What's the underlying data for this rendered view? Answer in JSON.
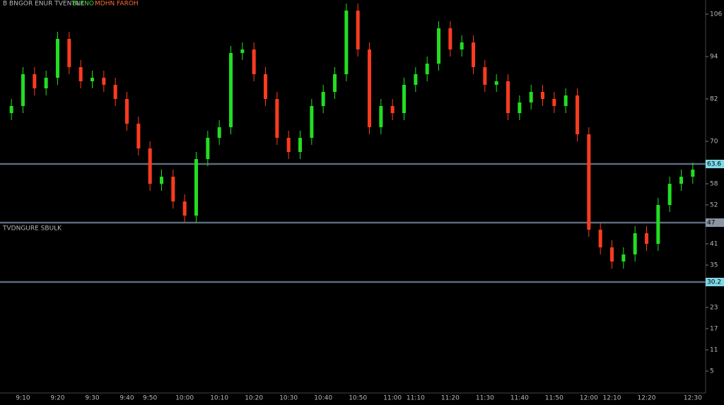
{
  "chart_data": {
    "type": "candlestick",
    "title": "B BNGOR ENUR TVENTNE",
    "subtitle": "BLKNO",
    "annotation": "MDHN FAROH",
    "panel_label": "TVDNGURE SBULK",
    "up_color": "#22dd22",
    "down_color": "#ff3b1f",
    "categories": [
      null,
      "9:10",
      null,
      null,
      "9:20",
      null,
      null,
      "9:30",
      null,
      null,
      "9:40",
      null,
      "9:50",
      null,
      null,
      "10:00",
      null,
      null,
      "10:10",
      null,
      null,
      "10:20",
      null,
      null,
      "10:30",
      null,
      null,
      "10:40",
      null,
      null,
      "10:50",
      null,
      null,
      "11:00",
      null,
      "11:10",
      null,
      null,
      "11:20",
      null,
      null,
      "11:30",
      null,
      null,
      "11:40",
      null,
      null,
      "11:50",
      null,
      null,
      "12:00",
      null,
      "12:10",
      null,
      null,
      "12:20",
      null,
      null,
      null,
      "12:30"
    ],
    "open": [
      78,
      80,
      89,
      85,
      88,
      99,
      91,
      87,
      88,
      86,
      82,
      75,
      68,
      58,
      60,
      53,
      49,
      65,
      71,
      74,
      95,
      96,
      89,
      82,
      71,
      67,
      71,
      80,
      84,
      89,
      107,
      96,
      74,
      80,
      78,
      86,
      89,
      92,
      102,
      96,
      98,
      91,
      86,
      87,
      78,
      81,
      84,
      82,
      80,
      83,
      72,
      45,
      40,
      36,
      38,
      44,
      41,
      52,
      58,
      60
    ],
    "high": [
      82,
      91,
      91,
      90,
      101,
      101,
      93,
      90,
      90,
      88,
      84,
      77,
      70,
      62,
      62,
      55,
      67,
      73,
      76,
      97,
      98,
      98,
      91,
      84,
      73,
      73,
      82,
      86,
      91,
      109,
      109,
      98,
      82,
      82,
      88,
      91,
      94,
      104,
      104,
      100,
      100,
      93,
      89,
      89,
      83,
      86,
      86,
      84,
      85,
      85,
      74,
      47,
      42,
      40,
      46,
      46,
      54,
      60,
      62,
      64
    ],
    "low": [
      76,
      78,
      83,
      83,
      86,
      89,
      85,
      85,
      84,
      80,
      73,
      66,
      56,
      56,
      51,
      47,
      47,
      63,
      69,
      72,
      93,
      87,
      80,
      69,
      65,
      65,
      69,
      78,
      82,
      87,
      94,
      72,
      72,
      76,
      76,
      84,
      87,
      90,
      94,
      94,
      89,
      84,
      84,
      76,
      76,
      79,
      80,
      78,
      78,
      70,
      43,
      38,
      34,
      34,
      36,
      39,
      39,
      50,
      56,
      58
    ],
    "close": [
      80,
      89,
      85,
      88,
      99,
      91,
      87,
      88,
      86,
      82,
      75,
      68,
      58,
      60,
      53,
      49,
      65,
      71,
      74,
      95,
      96,
      89,
      82,
      71,
      67,
      71,
      80,
      84,
      89,
      107,
      96,
      74,
      80,
      78,
      86,
      89,
      92,
      102,
      96,
      98,
      91,
      86,
      87,
      78,
      81,
      84,
      82,
      80,
      83,
      72,
      45,
      40,
      36,
      38,
      44,
      41,
      52,
      58,
      60,
      62
    ],
    "ylim": [
      0,
      110
    ],
    "yticks": [
      106,
      94,
      82,
      70,
      58,
      52,
      41,
      35,
      23,
      17,
      11,
      5
    ],
    "levels": [
      {
        "value": 63.6,
        "color": "#7fd8e6"
      },
      {
        "value": 47,
        "color": "#8a96a6"
      },
      {
        "value": 30.2,
        "color": "#7fd8e6"
      }
    ],
    "level_line_color": "#5c6b7c"
  }
}
